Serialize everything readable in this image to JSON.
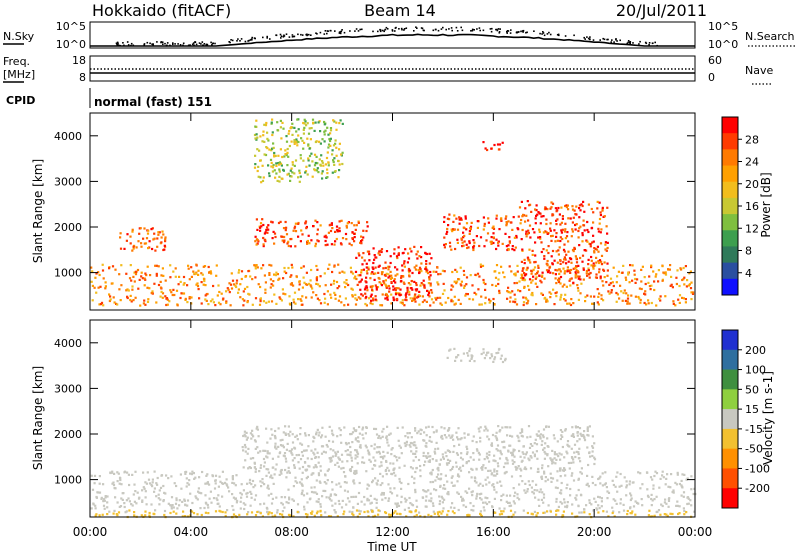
{
  "header": {
    "title_left": "Hokkaido (fitACF)",
    "title_center": "Beam 14",
    "title_right": "20/Jul/2011"
  },
  "top_panels": {
    "nsky_label": "N.Sky",
    "nsky_ticks": [
      "10^5",
      "10^0"
    ],
    "nsearch_label": "N.Search",
    "nsearch_ticks": [
      "10^5",
      "10^0"
    ],
    "freq_label": "Freq.",
    "freq_unit": "[MHz]",
    "freq_ticks": [
      "18",
      "8"
    ],
    "nave_label": "Nave",
    "nave_ticks": [
      "60",
      "0"
    ],
    "cpid_label": "CPID",
    "cpid_value": "normal (fast) 151"
  },
  "x_axis": {
    "label": "Time UT",
    "ticks": [
      "00:00",
      "04:00",
      "08:00",
      "12:00",
      "16:00",
      "20:00",
      "00:00"
    ]
  },
  "power_colorbar": {
    "label": "Power [dB]",
    "ticks": [
      "28",
      "24",
      "20",
      "16",
      "12",
      "8",
      "4"
    ],
    "colors": [
      "#ff0000",
      "#ff3b00",
      "#ff7a00",
      "#ffa000",
      "#f2bd1d",
      "#c8c833",
      "#7fbf3f",
      "#3d9f4f",
      "#2f7a5a",
      "#2a4fa0",
      "#1010ff"
    ]
  },
  "velocity_colorbar": {
    "label": "Velocity [m s-1]",
    "ticks": [
      "200",
      "100",
      "50",
      "15",
      "-15",
      "-50",
      "-100",
      "-200"
    ],
    "colors": [
      "#2030d0",
      "#2f6f9f",
      "#3f8f3f",
      "#8fd03f",
      "#c8c8c0",
      "#f2c030",
      "#ff9000",
      "#ff5000",
      "#ff0000"
    ]
  },
  "chart_data": [
    {
      "type": "heatmap",
      "name": "power",
      "ylabel": "Slant Range [km]",
      "xlabel": "",
      "yticks": [
        "1000",
        "2000",
        "3000",
        "4000"
      ],
      "ylim": [
        180,
        4500
      ],
      "xlim_hours": [
        0,
        24
      ],
      "colorbar_label": "Power [dB]",
      "colorbar_range": [
        0,
        30
      ],
      "bands": [
        {
          "t0": 0.0,
          "t1": 24.0,
          "r0": 300,
          "r1": 1200,
          "value": 22
        },
        {
          "t0": 1.0,
          "t1": 3.0,
          "r0": 1500,
          "r1": 2000,
          "value": 25
        },
        {
          "t0": 6.5,
          "t1": 11.0,
          "r0": 1600,
          "r1": 2200,
          "value": 26
        },
        {
          "t0": 10.5,
          "t1": 13.5,
          "r0": 400,
          "r1": 1600,
          "value": 28
        },
        {
          "t0": 14.0,
          "t1": 17.0,
          "r0": 1500,
          "r1": 2300,
          "value": 26
        },
        {
          "t0": 17.0,
          "t1": 20.5,
          "r0": 800,
          "r1": 2600,
          "value": 26
        },
        {
          "t0": 15.5,
          "t1": 16.5,
          "r0": 3700,
          "r1": 3900,
          "value": 28
        },
        {
          "t0": 6.5,
          "t1": 10.0,
          "r0": 3000,
          "r1": 4400,
          "value": 14
        }
      ]
    },
    {
      "type": "heatmap",
      "name": "velocity",
      "ylabel": "Slant Range [km]",
      "xlabel": "Time UT",
      "yticks": [
        "1000",
        "2000",
        "3000",
        "4000"
      ],
      "ylim": [
        180,
        4500
      ],
      "xlim_hours": [
        0,
        24
      ],
      "colorbar_label": "Velocity [m s-1]",
      "colorbar_range": [
        -250,
        250
      ],
      "bands": [
        {
          "t0": 0.0,
          "t1": 24.0,
          "r0": 300,
          "r1": 1200,
          "value": 0
        },
        {
          "t0": 6.0,
          "t1": 20.0,
          "r0": 1200,
          "r1": 2200,
          "value": 0
        },
        {
          "t0": 14.0,
          "t1": 16.5,
          "r0": 3600,
          "r1": 3900,
          "value": 20
        },
        {
          "t0": 0.0,
          "t1": 24.0,
          "r0": 200,
          "r1": 350,
          "value": -40
        }
      ]
    }
  ]
}
